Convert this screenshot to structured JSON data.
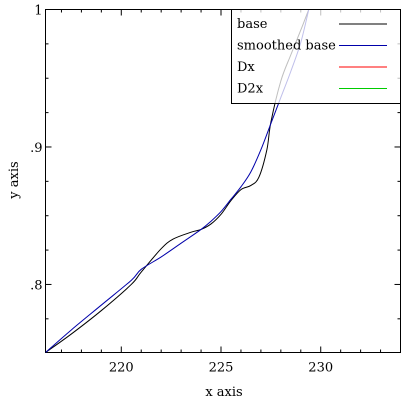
{
  "chart_data": {
    "type": "line",
    "title": "",
    "xlabel": "x axis",
    "ylabel": "y axis",
    "xlim": [
      216.2,
      234.0
    ],
    "ylim": [
      0.7505,
      1.0
    ],
    "x_ticks": [
      {
        "value": 220,
        "label": "220"
      },
      {
        "value": 225,
        "label": "225"
      },
      {
        "value": 230,
        "label": "230"
      }
    ],
    "y_ticks": [
      {
        "value": 0.8,
        "label": ".8"
      },
      {
        "value": 0.9,
        "label": ".9"
      },
      {
        "value": 1.0,
        "label": "1"
      }
    ],
    "grid": false,
    "legend_position": "top-right",
    "series": [
      {
        "name": "base",
        "color": "#000000",
        "x": [
          216.2,
          217.5,
          219.0,
          220.5,
          221.0,
          222.0,
          222.6,
          223.5,
          224.0,
          224.5,
          225.0,
          225.5,
          226.0,
          226.5,
          226.9,
          227.3,
          227.5,
          228.0,
          228.5,
          229.0,
          229.4
        ],
        "y": [
          0.7505,
          0.764,
          0.781,
          0.8,
          0.809,
          0.826,
          0.833,
          0.838,
          0.84,
          0.844,
          0.851,
          0.861,
          0.869,
          0.872,
          0.878,
          0.898,
          0.918,
          0.948,
          0.967,
          0.985,
          1.0
        ]
      },
      {
        "name": "smoothed base",
        "color": "#0000aa",
        "x": [
          216.2,
          217.5,
          219.0,
          220.5,
          221.0,
          222.0,
          223.0,
          224.0,
          224.5,
          225.0,
          225.5,
          226.0,
          226.5,
          227.0,
          227.5,
          228.0,
          228.5,
          229.0,
          229.4
        ],
        "y": [
          0.7505,
          0.767,
          0.785,
          0.803,
          0.811,
          0.82,
          0.83,
          0.84,
          0.846,
          0.853,
          0.862,
          0.871,
          0.882,
          0.898,
          0.917,
          0.936,
          0.955,
          0.976,
          1.0
        ]
      },
      {
        "name": "Dx",
        "color": "#ff0000",
        "x": [],
        "y": []
      },
      {
        "name": "D2x",
        "color": "#00cc00",
        "x": [],
        "y": []
      }
    ]
  }
}
